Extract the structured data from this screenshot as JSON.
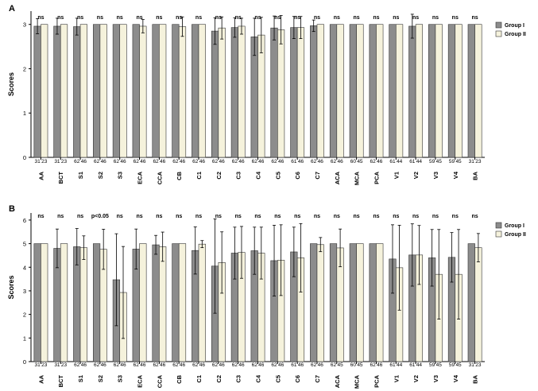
{
  "chart_data": [
    {
      "panel_label": "A",
      "type": "bar",
      "ylabel": "Scores",
      "ylim": [
        0,
        3.3
      ],
      "yticks": [
        0,
        1,
        2,
        3
      ],
      "legend_placement": "top-right",
      "categories": [
        "AA",
        "BCT",
        "S1",
        "S2",
        "S3",
        "ECA",
        "CCA",
        "CB",
        "C1",
        "C2",
        "C3",
        "C4",
        "C5",
        "C6",
        "C7",
        "ACA",
        "MCA",
        "PCA",
        "V1",
        "V2",
        "V3",
        "V4",
        "BA"
      ],
      "series": [
        {
          "name": "Group I",
          "values": [
            2.96,
            2.96,
            2.95,
            3.0,
            3.0,
            3.0,
            3.0,
            3.0,
            3.0,
            2.85,
            2.93,
            2.72,
            2.92,
            2.93,
            2.97,
            3.0,
            3.0,
            3.0,
            3.0,
            2.96,
            3.0,
            3.0,
            3.0
          ],
          "err": [
            0.17,
            0.18,
            0.19,
            0,
            0,
            0,
            0,
            0,
            0,
            0.3,
            0.22,
            0.42,
            0.27,
            0.25,
            0.13,
            0,
            0,
            0,
            0,
            0.27,
            0,
            0,
            0
          ],
          "n": [
            31,
            31,
            62,
            62,
            62,
            62,
            62,
            62,
            62,
            62,
            62,
            62,
            62,
            61,
            62,
            62,
            60,
            62,
            61,
            61,
            59,
            59,
            31
          ]
        },
        {
          "name": "Group II",
          "values": [
            3.0,
            3.0,
            3.0,
            3.0,
            3.0,
            2.96,
            3.0,
            2.95,
            3.0,
            2.92,
            2.96,
            2.76,
            2.88,
            2.93,
            3.0,
            3.0,
            3.0,
            3.0,
            3.0,
            3.0,
            3.0,
            3.0,
            3.0
          ],
          "err": [
            0,
            0,
            0,
            0,
            0,
            0.15,
            0,
            0.22,
            0,
            0.25,
            0.18,
            0.4,
            0.32,
            0.25,
            0,
            0,
            0,
            0,
            0,
            0,
            0,
            0,
            0
          ],
          "n": [
            23,
            23,
            46,
            46,
            46,
            46,
            46,
            46,
            46,
            46,
            46,
            46,
            46,
            46,
            46,
            46,
            45,
            46,
            44,
            44,
            45,
            45,
            23
          ]
        }
      ],
      "annotations": [
        "ns",
        "ns",
        "ns",
        "ns",
        "ns",
        "ns",
        "ns",
        "ns",
        "ns",
        "ns",
        "ns",
        "ns",
        "ns",
        "ns",
        "ns",
        "ns",
        "ns",
        "ns",
        "ns",
        "ns",
        "ns",
        "ns",
        "ns"
      ]
    },
    {
      "panel_label": "B",
      "type": "bar",
      "ylabel": "Scores",
      "ylim": [
        0,
        6.3
      ],
      "yticks": [
        0,
        1,
        2,
        3,
        4,
        5,
        6
      ],
      "legend_placement": "top-right",
      "categories": [
        "AA",
        "BCT",
        "S1",
        "S2",
        "S3",
        "ECA",
        "CCA",
        "CB",
        "C1",
        "C2",
        "C3",
        "C4",
        "C5",
        "C6",
        "C7",
        "ACA",
        "MCA",
        "PCA",
        "V1",
        "V2",
        "V3",
        "V4",
        "BA"
      ],
      "series": [
        {
          "name": "Group I",
          "values": [
            5.0,
            4.8,
            4.87,
            5.0,
            3.47,
            4.77,
            4.95,
            5.0,
            4.71,
            4.05,
            4.6,
            4.7,
            4.28,
            4.65,
            5.0,
            5.0,
            5.0,
            5.0,
            4.35,
            4.52,
            4.4,
            4.42,
            5.0
          ],
          "err": [
            0,
            0.82,
            0.77,
            0,
            1.95,
            0.85,
            0.4,
            0,
            1.0,
            2.0,
            1.1,
            1.0,
            1.5,
            1.05,
            0,
            0,
            0,
            0,
            1.45,
            1.32,
            1.2,
            1.05,
            0
          ],
          "n": [
            31,
            31,
            62,
            62,
            62,
            62,
            62,
            62,
            62,
            62,
            62,
            62,
            62,
            61,
            62,
            62,
            60,
            62,
            61,
            61,
            59,
            59,
            31
          ]
        },
        {
          "name": "Group II",
          "values": [
            5.0,
            5.0,
            4.83,
            4.76,
            2.93,
            5.0,
            4.87,
            5.0,
            4.98,
            4.2,
            4.63,
            4.6,
            4.3,
            4.4,
            4.96,
            4.82,
            5.0,
            5.0,
            3.98,
            4.52,
            3.7,
            3.7,
            4.83
          ],
          "err": [
            0,
            0,
            0.5,
            0.85,
            1.95,
            0,
            0.62,
            0,
            0.15,
            1.3,
            1.1,
            1.1,
            1.5,
            1.45,
            0.3,
            0.8,
            0,
            0,
            1.8,
            1.25,
            1.9,
            1.9,
            0.6
          ],
          "n": [
            23,
            23,
            46,
            46,
            46,
            46,
            46,
            46,
            46,
            46,
            46,
            46,
            46,
            46,
            46,
            45,
            45,
            46,
            44,
            44,
            45,
            45,
            23
          ]
        }
      ],
      "annotations": [
        "ns",
        "ns",
        "ns",
        "p<0.05",
        "ns",
        "ns",
        "ns",
        "ns",
        "ns",
        "ns",
        "ns",
        "ns",
        "ns",
        "ns",
        "ns",
        "ns",
        "ns",
        "ns",
        "ns",
        "ns",
        "ns",
        "ns",
        "ns"
      ]
    }
  ],
  "colors": {
    "group1": "#8c8c8c",
    "group2": "#f5f2dc",
    "axis": "#000000"
  }
}
